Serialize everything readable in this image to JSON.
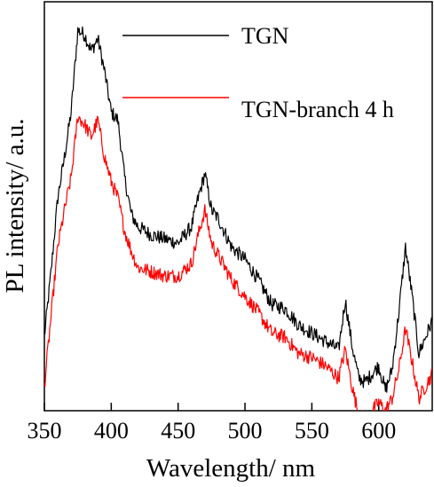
{
  "chart_data": {
    "type": "line",
    "title": "",
    "xlabel": "Wavelength/ nm",
    "ylabel": "PL intensity/ a.u.",
    "xlim": [
      350,
      640
    ],
    "ylim": [
      0,
      1
    ],
    "x_ticks": [
      350,
      400,
      450,
      500,
      550,
      600
    ],
    "y_ticks_shown": false,
    "grid": false,
    "legend": {
      "placement": "top-right"
    },
    "series": [
      {
        "name": "TGN",
        "color": "#000000",
        "x": [
          350,
          355,
          360,
          365,
          370,
          375,
          380,
          385,
          390,
          395,
          400,
          405,
          410,
          415,
          420,
          430,
          440,
          450,
          460,
          465,
          470,
          475,
          480,
          490,
          500,
          510,
          520,
          530,
          540,
          550,
          560,
          570,
          575,
          580,
          585,
          590,
          600,
          605,
          610,
          615,
          620,
          625,
          630,
          640
        ],
        "y": [
          0.18,
          0.34,
          0.52,
          0.62,
          0.73,
          0.93,
          0.92,
          0.88,
          0.91,
          0.83,
          0.73,
          0.71,
          0.57,
          0.48,
          0.45,
          0.43,
          0.42,
          0.41,
          0.45,
          0.52,
          0.58,
          0.49,
          0.47,
          0.4,
          0.37,
          0.32,
          0.26,
          0.25,
          0.21,
          0.19,
          0.17,
          0.15,
          0.27,
          0.16,
          0.08,
          0.07,
          0.11,
          0.05,
          0.1,
          0.24,
          0.4,
          0.28,
          0.14,
          0.22
        ]
      },
      {
        "name": "TGN-branch 4 h",
        "color": "#ff0000",
        "x": [
          350,
          355,
          360,
          365,
          370,
          375,
          380,
          385,
          390,
          395,
          400,
          405,
          410,
          415,
          420,
          430,
          440,
          450,
          460,
          465,
          470,
          475,
          480,
          490,
          500,
          510,
          520,
          530,
          540,
          550,
          560,
          570,
          575,
          580,
          585,
          590,
          600,
          605,
          610,
          615,
          620,
          625,
          630,
          640
        ],
        "y": [
          0.06,
          0.23,
          0.4,
          0.49,
          0.57,
          0.72,
          0.7,
          0.67,
          0.71,
          0.62,
          0.56,
          0.52,
          0.44,
          0.39,
          0.35,
          0.34,
          0.33,
          0.33,
          0.36,
          0.43,
          0.49,
          0.41,
          0.38,
          0.32,
          0.28,
          0.24,
          0.19,
          0.18,
          0.14,
          0.13,
          0.11,
          0.08,
          0.15,
          0.06,
          -0.01,
          -0.02,
          0.02,
          0.0,
          0.03,
          0.1,
          0.2,
          0.12,
          0.03,
          0.09
        ]
      }
    ]
  }
}
